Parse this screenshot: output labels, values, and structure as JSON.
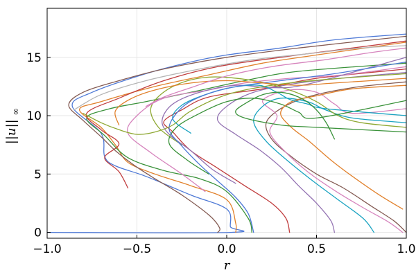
{
  "chart_data": {
    "type": "line",
    "title": "",
    "xlabel": "r",
    "ylabel_main": "||u||",
    "ylabel_sub": "∞",
    "xlim": [
      -1.0,
      1.0
    ],
    "ylim": [
      -0.5,
      19.2
    ],
    "grid": true,
    "legend": "none",
    "x_ticks": [
      -1.0,
      -0.5,
      0.0,
      0.5,
      1.0
    ],
    "x_tick_labels": [
      "−1.0",
      "−0.5",
      "0.0",
      "0.5",
      "1.0"
    ],
    "y_ticks": [
      0,
      5,
      10,
      15
    ],
    "y_tick_labels": [
      "0",
      "5",
      "10",
      "15"
    ],
    "colors": {
      "plot_bg": "#ffffff",
      "grid": "#e6e6e6",
      "frame": "#000000",
      "palette": [
        "#4e79d6",
        "#e1812c",
        "#3a923a",
        "#c03d3e",
        "#9372b2",
        "#845b53",
        "#d684bd",
        "#b5b5b5",
        "#8ea832",
        "#1aa3c1"
      ]
    },
    "series": [
      {
        "color": "#4e79d6",
        "points": [
          [
            -1.0,
            0
          ],
          [
            0.02,
            0
          ],
          [
            0.02,
            0.5
          ],
          [
            0.0,
            2.0
          ],
          [
            -0.2,
            3.2
          ],
          [
            -0.45,
            4.8
          ],
          [
            -0.62,
            5.7
          ],
          [
            -0.68,
            6.5
          ],
          [
            -0.7,
            8.5
          ],
          [
            -0.86,
            10.8
          ],
          [
            -0.75,
            12.0
          ],
          [
            -0.45,
            13.6
          ],
          [
            -0.2,
            14.6
          ],
          [
            0.0,
            15.2
          ],
          [
            0.3,
            15.8
          ],
          [
            0.6,
            16.5
          ],
          [
            1.0,
            17.0
          ]
        ]
      },
      {
        "color": "#e1812c",
        "points": [
          [
            0.05,
            0
          ],
          [
            0.05,
            0.8
          ],
          [
            0.0,
            2.8
          ],
          [
            -0.2,
            4.0
          ],
          [
            -0.4,
            5.0
          ],
          [
            -0.55,
            6.0
          ],
          [
            -0.62,
            7.5
          ],
          [
            -0.7,
            9.0
          ],
          [
            -0.82,
            10.5
          ],
          [
            -0.7,
            11.2
          ],
          [
            -0.4,
            12.5
          ],
          [
            -0.1,
            13.5
          ],
          [
            0.2,
            14.5
          ],
          [
            0.5,
            15.2
          ],
          [
            1.0,
            16.3
          ]
        ]
      },
      {
        "color": "#3a923a",
        "points": [
          [
            0.14,
            0
          ],
          [
            0.12,
            1.2
          ],
          [
            0.0,
            3.5
          ],
          [
            -0.15,
            4.6
          ],
          [
            -0.35,
            5.3
          ],
          [
            -0.55,
            6.4
          ],
          [
            -0.68,
            8.3
          ],
          [
            -0.78,
            9.8
          ],
          [
            -0.65,
            10.6
          ],
          [
            -0.45,
            11.2
          ],
          [
            -0.2,
            12.0
          ],
          [
            0.1,
            13.0
          ],
          [
            0.4,
            13.8
          ],
          [
            1.0,
            14.5
          ]
        ]
      },
      {
        "color": "#c03d3e",
        "points": [
          [
            0.35,
            0
          ],
          [
            0.33,
            1.2
          ],
          [
            0.25,
            2.5
          ],
          [
            0.1,
            4.0
          ],
          [
            -0.05,
            5.5
          ],
          [
            -0.2,
            7.0
          ],
          [
            -0.3,
            8.6
          ],
          [
            -0.35,
            9.5
          ],
          [
            -0.25,
            10.5
          ],
          [
            -0.1,
            11.6
          ],
          [
            0.2,
            12.3
          ],
          [
            0.5,
            13.2
          ],
          [
            1.0,
            14.0
          ]
        ]
      },
      {
        "color": "#9372b2",
        "points": [
          [
            0.6,
            0
          ],
          [
            0.58,
            1.0
          ],
          [
            0.5,
            2.5
          ],
          [
            0.4,
            4.0
          ],
          [
            0.3,
            5.6
          ],
          [
            0.18,
            7.1
          ],
          [
            0.05,
            8.4
          ],
          [
            -0.05,
            9.6
          ],
          [
            0.0,
            10.8
          ],
          [
            0.15,
            12.0
          ],
          [
            0.4,
            12.8
          ],
          [
            0.7,
            13.3
          ],
          [
            1.0,
            13.7
          ]
        ]
      },
      {
        "color": "#845b53",
        "points": [
          [
            1.0,
            0
          ],
          [
            0.93,
            1.0
          ],
          [
            0.8,
            2.3
          ],
          [
            0.65,
            3.8
          ],
          [
            0.5,
            5.0
          ],
          [
            0.35,
            6.6
          ],
          [
            0.25,
            8.0
          ],
          [
            0.22,
            9.4
          ],
          [
            0.3,
            10.6
          ],
          [
            0.45,
            11.6
          ],
          [
            0.7,
            12.4
          ],
          [
            1.0,
            12.9
          ]
        ]
      },
      {
        "color": "#d684bd",
        "points": [
          [
            0.98,
            0
          ],
          [
            0.9,
            0.9
          ],
          [
            0.75,
            2.2
          ],
          [
            0.6,
            3.6
          ],
          [
            0.45,
            5.2
          ],
          [
            0.32,
            7.0
          ],
          [
            0.24,
            8.6
          ],
          [
            0.28,
            10.0
          ],
          [
            0.2,
            11.3
          ],
          [
            0.35,
            12.2
          ],
          [
            0.5,
            12.0
          ],
          [
            0.6,
            11.0
          ],
          [
            0.7,
            10.2
          ],
          [
            1.0,
            10.6
          ]
        ]
      },
      {
        "color": "#1aa3c1",
        "points": [
          [
            0.82,
            0
          ],
          [
            0.76,
            1.2
          ],
          [
            0.62,
            2.8
          ],
          [
            0.48,
            4.4
          ],
          [
            0.35,
            6.0
          ],
          [
            0.22,
            7.8
          ],
          [
            0.15,
            9.5
          ],
          [
            0.2,
            10.8
          ],
          [
            0.3,
            11.5
          ],
          [
            0.45,
            11.2
          ],
          [
            0.55,
            10.5
          ],
          [
            0.7,
            9.8
          ],
          [
            1.0,
            9.4
          ]
        ]
      },
      {
        "color": "#8ea832",
        "points": [
          [
            -0.25,
            7.5
          ],
          [
            -0.38,
            9.0
          ],
          [
            -0.42,
            10.8
          ],
          [
            -0.3,
            12.5
          ],
          [
            -0.1,
            13.3
          ],
          [
            0.15,
            13.0
          ],
          [
            0.35,
            12.2
          ],
          [
            0.5,
            11.2
          ],
          [
            0.62,
            10.0
          ],
          [
            0.75,
            9.4
          ],
          [
            1.0,
            9.0
          ]
        ]
      },
      {
        "color": "#3a923a",
        "points": [
          [
            -0.1,
            5.0
          ],
          [
            -0.22,
            6.2
          ],
          [
            -0.32,
            7.6
          ],
          [
            -0.28,
            9.0
          ],
          [
            -0.15,
            10.2
          ],
          [
            0.0,
            11.2
          ],
          [
            0.15,
            11.5
          ],
          [
            0.3,
            11.0
          ],
          [
            0.4,
            10.3
          ],
          [
            0.5,
            9.8
          ],
          [
            1.0,
            11.3
          ]
        ]
      },
      {
        "color": "#e1812c",
        "points": [
          [
            0.98,
            2.0
          ],
          [
            0.85,
            3.2
          ],
          [
            0.7,
            4.8
          ],
          [
            0.58,
            6.2
          ],
          [
            0.46,
            7.8
          ],
          [
            0.36,
            9.0
          ],
          [
            0.3,
            10.2
          ],
          [
            0.36,
            11.2
          ],
          [
            0.5,
            11.7
          ],
          [
            0.7,
            12.3
          ],
          [
            1.0,
            12.6
          ]
        ]
      },
      {
        "color": "#d684bd",
        "points": [
          [
            -0.12,
            3.5
          ],
          [
            -0.25,
            5.0
          ],
          [
            -0.42,
            6.8
          ],
          [
            -0.55,
            8.5
          ],
          [
            -0.5,
            10.0
          ],
          [
            -0.35,
            11.5
          ],
          [
            -0.1,
            12.2
          ],
          [
            0.1,
            12.8
          ],
          [
            0.35,
            13.2
          ],
          [
            0.65,
            13.5
          ],
          [
            1.0,
            14.2
          ]
        ]
      },
      {
        "color": "#9372b2",
        "points": [
          [
            0.05,
            4.2
          ],
          [
            -0.08,
            5.4
          ],
          [
            -0.2,
            7.0
          ],
          [
            -0.32,
            8.4
          ],
          [
            -0.36,
            9.6
          ],
          [
            -0.3,
            11.0
          ],
          [
            -0.15,
            12.0
          ],
          [
            0.05,
            12.6
          ],
          [
            0.25,
            12.4
          ],
          [
            0.45,
            12.7
          ],
          [
            1.0,
            15.0
          ]
        ]
      },
      {
        "color": "#c03d3e",
        "points": [
          [
            -0.55,
            3.8
          ],
          [
            -0.6,
            5.2
          ],
          [
            -0.68,
            6.4
          ],
          [
            -0.6,
            7.6
          ],
          [
            -0.7,
            8.8
          ],
          [
            -0.78,
            10.2
          ],
          [
            -0.6,
            11.5
          ],
          [
            -0.35,
            13.0
          ],
          [
            -0.05,
            14.2
          ],
          [
            0.3,
            15.0
          ],
          [
            0.6,
            15.6
          ],
          [
            1.0,
            16.4
          ]
        ]
      },
      {
        "color": "#1aa3c1",
        "points": [
          [
            -0.2,
            8.5
          ],
          [
            -0.3,
            9.7
          ],
          [
            -0.25,
            10.9
          ],
          [
            -0.12,
            11.8
          ],
          [
            0.02,
            12.4
          ],
          [
            0.18,
            12.6
          ],
          [
            0.28,
            12.0
          ],
          [
            0.35,
            11.4
          ],
          [
            0.45,
            11.0
          ],
          [
            0.55,
            10.6
          ],
          [
            1.0,
            10.0
          ]
        ]
      },
      {
        "color": "#845b53",
        "points": [
          [
            -0.05,
            0
          ],
          [
            -0.04,
            0.4
          ],
          [
            -0.1,
            1.5
          ],
          [
            -0.25,
            3.2
          ],
          [
            -0.4,
            4.6
          ],
          [
            -0.52,
            5.8
          ],
          [
            -0.62,
            7.0
          ],
          [
            -0.7,
            8.2
          ],
          [
            -0.8,
            9.6
          ],
          [
            -0.88,
            10.9
          ],
          [
            -0.8,
            12.0
          ],
          [
            -0.6,
            13.0
          ],
          [
            -0.35,
            14.0
          ],
          [
            0.0,
            15.0
          ],
          [
            0.4,
            15.8
          ],
          [
            1.0,
            16.8
          ]
        ]
      },
      {
        "color": "#b5b5b5",
        "points": [
          [
            -0.85,
            10.5
          ],
          [
            -0.7,
            11.8
          ],
          [
            -0.45,
            13.0
          ],
          [
            -0.15,
            14.0
          ],
          [
            0.15,
            14.8
          ],
          [
            0.45,
            15.3
          ],
          [
            0.75,
            15.8
          ],
          [
            1.0,
            16.0
          ]
        ]
      },
      {
        "color": "#4e79d6",
        "points": [
          [
            0.15,
            0
          ],
          [
            0.12,
            1.6
          ],
          [
            0.05,
            3.0
          ],
          [
            -0.05,
            4.4
          ],
          [
            -0.15,
            5.8
          ],
          [
            -0.25,
            7.4
          ],
          [
            -0.32,
            8.8
          ],
          [
            -0.28,
            10.2
          ],
          [
            -0.18,
            11.4
          ],
          [
            0.02,
            12.4
          ],
          [
            0.3,
            13.0
          ],
          [
            0.6,
            13.6
          ],
          [
            1.0,
            14.6
          ]
        ]
      },
      {
        "color": "#e1812c",
        "points": [
          [
            -0.6,
            9.2
          ],
          [
            -0.62,
            10.4
          ],
          [
            -0.54,
            11.4
          ],
          [
            -0.4,
            12.2
          ],
          [
            -0.2,
            12.8
          ],
          [
            0.0,
            13.0
          ],
          [
            0.2,
            12.8
          ],
          [
            0.4,
            12.6
          ],
          [
            0.6,
            12.8
          ],
          [
            1.0,
            13.2
          ]
        ]
      },
      {
        "color": "#3a923a",
        "points": [
          [
            0.6,
            8.0
          ],
          [
            0.55,
            9.5
          ],
          [
            0.48,
            10.8
          ],
          [
            0.4,
            11.6
          ],
          [
            0.3,
            12.0
          ],
          [
            0.2,
            11.8
          ],
          [
            0.12,
            11.2
          ],
          [
            0.05,
            10.4
          ],
          [
            0.1,
            9.8
          ],
          [
            0.3,
            9.2
          ],
          [
            0.5,
            9.0
          ],
          [
            1.0,
            8.6
          ]
        ]
      },
      {
        "color": "#d684bd",
        "points": [
          [
            -0.45,
            10.8
          ],
          [
            -0.35,
            11.6
          ],
          [
            -0.2,
            12.4
          ],
          [
            0.0,
            13.4
          ],
          [
            0.25,
            14.2
          ],
          [
            0.55,
            14.8
          ],
          [
            0.8,
            15.4
          ],
          [
            1.0,
            15.8
          ]
        ]
      },
      {
        "color": "#8ea832",
        "points": [
          [
            -0.8,
            10.2
          ],
          [
            -0.7,
            9.4
          ],
          [
            -0.6,
            8.8
          ],
          [
            -0.5,
            8.4
          ],
          [
            -0.4,
            8.6
          ],
          [
            -0.3,
            9.2
          ],
          [
            -0.2,
            10.4
          ],
          [
            0.0,
            11.8
          ],
          [
            0.25,
            12.6
          ],
          [
            0.55,
            13.1
          ],
          [
            1.0,
            13.6
          ]
        ]
      }
    ]
  }
}
